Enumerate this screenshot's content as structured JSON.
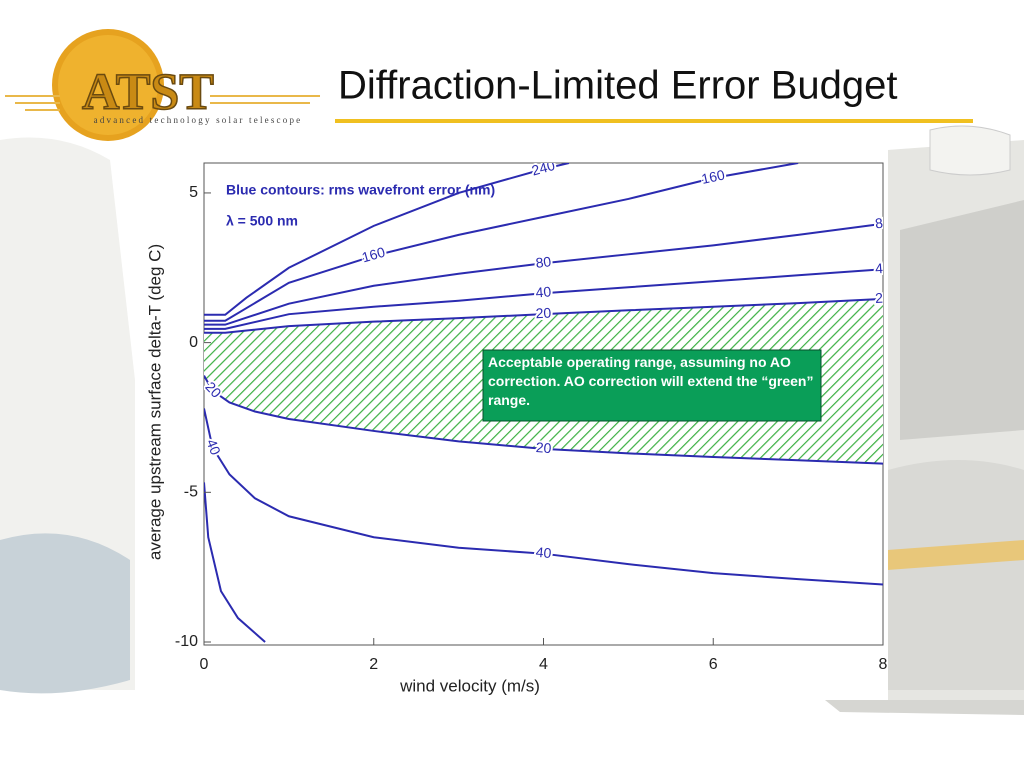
{
  "slide": {
    "title": "Diffraction-Limited Error Budget",
    "logo": "ATST",
    "logo_subtitle": "advanced technology solar telescope"
  },
  "chart_data": {
    "type": "contour",
    "x_label": "wind velocity (m/s)",
    "y_label": "average upstream surface delta-T (deg C)",
    "annotations": [
      "Blue contours: rms wavefront error (nm)",
      "λ = 500 nm",
      "Acceptable operating range, assuming no AO correction. AO correction will extend the “green” range."
    ],
    "xlim": [
      0,
      8
    ],
    "ylim": [
      -10.1,
      6
    ],
    "xticks": [
      0,
      2,
      4,
      6,
      8
    ],
    "yticks": [
      5,
      0,
      -5,
      -10
    ],
    "region_color": "#3cb043",
    "series": [
      {
        "name": "240",
        "color": "#2b2bb0",
        "x": [
          0,
          0.25,
          0.5,
          1,
          2,
          3,
          4,
          4.3
        ],
        "values": [
          0.93,
          0.93,
          1.5,
          2.5,
          3.9,
          5.0,
          5.8,
          6.0
        ]
      },
      {
        "name": "160",
        "color": "#2b2bb0",
        "x": [
          0,
          0.25,
          1,
          2,
          3,
          4,
          5,
          6,
          7
        ],
        "values": [
          0.73,
          0.73,
          2.0,
          2.9,
          3.6,
          4.2,
          4.8,
          5.5,
          6.0
        ]
      },
      {
        "name": "80",
        "color": "#2b2bb0",
        "x": [
          0,
          0.25,
          1,
          2,
          3,
          4,
          5,
          6,
          7,
          8
        ],
        "values": [
          0.6,
          0.6,
          1.3,
          1.9,
          2.3,
          2.65,
          2.95,
          3.25,
          3.6,
          3.97
        ]
      },
      {
        "name": "40",
        "color": "#2b2bb0",
        "x": [
          0,
          0.25,
          1,
          2,
          3,
          4,
          5,
          6,
          7,
          8
        ],
        "values": [
          0.46,
          0.46,
          0.95,
          1.2,
          1.4,
          1.65,
          1.85,
          2.05,
          2.25,
          2.45
        ]
      },
      {
        "name": "20",
        "color": "#2b2bb0",
        "x": [
          0,
          0.25,
          1,
          2,
          3,
          4,
          5,
          6,
          7,
          8
        ],
        "values": [
          0.33,
          0.33,
          0.55,
          0.7,
          0.82,
          0.95,
          1.08,
          1.2,
          1.32,
          1.46
        ]
      },
      {
        "name": "20",
        "color": "#2b2bb0",
        "x": [
          0,
          0.1,
          0.3,
          0.6,
          1,
          2,
          3,
          4,
          5,
          6,
          7,
          8
        ],
        "values": [
          -1.1,
          -1.6,
          -2.0,
          -2.3,
          -2.55,
          -2.95,
          -3.3,
          -3.55,
          -3.7,
          -3.82,
          -3.93,
          -4.04
        ]
      },
      {
        "name": "40",
        "color": "#2b2bb0",
        "x": [
          0,
          0.1,
          0.3,
          0.6,
          1,
          2,
          3,
          4,
          5,
          6,
          7,
          8
        ],
        "values": [
          -2.2,
          -3.5,
          -4.4,
          -5.2,
          -5.8,
          -6.5,
          -6.85,
          -7.05,
          -7.4,
          -7.7,
          -7.9,
          -8.08
        ]
      },
      {
        "name": "80",
        "color": "#2b2bb0",
        "x": [
          0,
          0.05,
          0.2,
          0.4,
          0.72
        ],
        "values": [
          -4.67,
          -6.5,
          -8.3,
          -9.2,
          -10.0
        ]
      }
    ]
  }
}
